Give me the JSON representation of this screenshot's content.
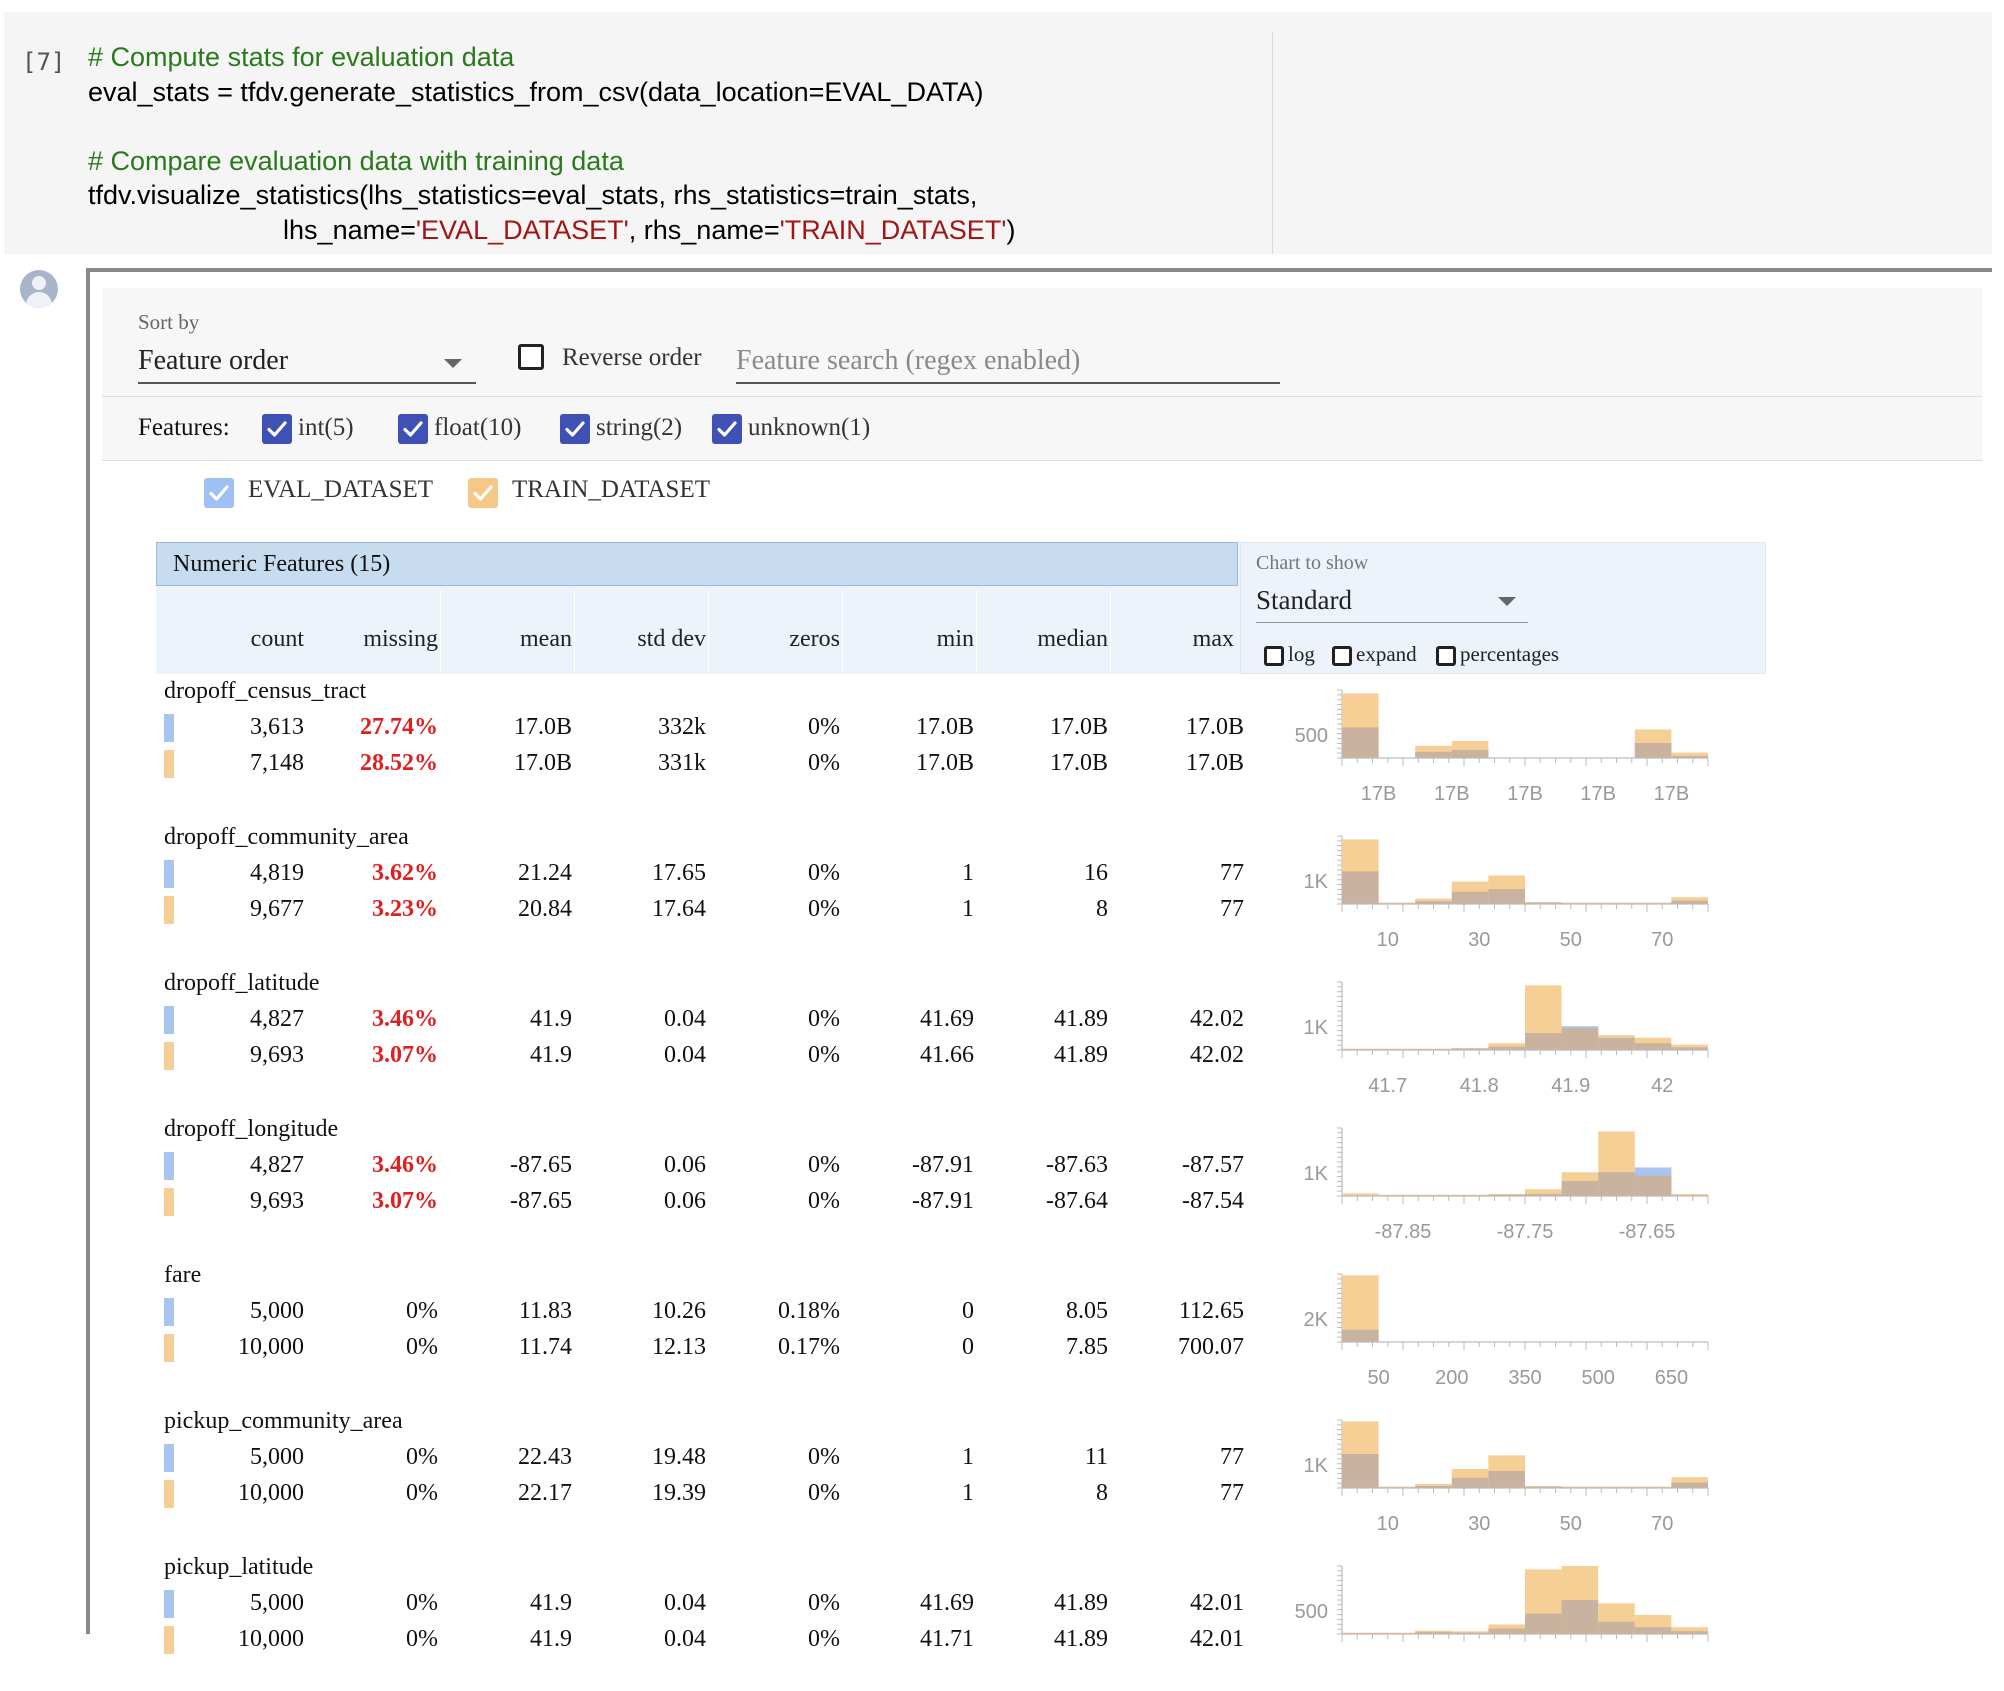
{
  "cell": {
    "execution_count": "[7]",
    "code_lines": [
      [
        {
          "t": "# Compute stats for evaluation data",
          "c": "cm"
        }
      ],
      [
        {
          "t": "eval_stats = tfdv.generate_statistics_from_csv(data_location=EVAL_DATA)",
          "c": ""
        }
      ],
      [
        {
          "t": "",
          "c": ""
        }
      ],
      [
        {
          "t": "# Compare evaluation data with training data",
          "c": "cm"
        }
      ],
      [
        {
          "t": "tfdv.visualize_statistics(lhs_statistics=eval_stats, rhs_statistics=train_stats,",
          "c": ""
        }
      ],
      [
        {
          "t": "                          lhs_name=",
          "c": ""
        },
        {
          "t": "'EVAL_DATASET'",
          "c": "st"
        },
        {
          "t": ", rhs_name=",
          "c": ""
        },
        {
          "t": "'TRAIN_DATASET'",
          "c": "st"
        },
        {
          "t": ")",
          "c": ""
        }
      ]
    ]
  },
  "controls": {
    "sort_by_label": "Sort by",
    "sort_by_value": "Feature order",
    "reverse_order_label": "Reverse order",
    "search_placeholder": "Feature search (regex enabled)",
    "features_label": "Features:",
    "feature_types": [
      {
        "label": "int(5)",
        "checked": true
      },
      {
        "label": "float(10)",
        "checked": true
      },
      {
        "label": "string(2)",
        "checked": true
      },
      {
        "label": "unknown(1)",
        "checked": true
      }
    ],
    "datasets": [
      {
        "label": "EVAL_DATASET",
        "color": "#9ec0f2"
      },
      {
        "label": "TRAIN_DATASET",
        "color": "#f5c888"
      }
    ]
  },
  "table": {
    "title": "Numeric Features (15)",
    "columns": [
      "count",
      "missing",
      "mean",
      "std dev",
      "zeros",
      "min",
      "median",
      "max"
    ],
    "chart_to_show_label": "Chart to show",
    "chart_to_show_value": "Standard",
    "chart_options": [
      "log",
      "expand",
      "percentages"
    ],
    "colors": {
      "eval": "#a9c4ef",
      "train": "#f6cf97",
      "overlap": "#c9b29e",
      "missing_red": "#e02020"
    }
  },
  "features": [
    {
      "name": "dropoff_census_tract",
      "rows": [
        [
          "3,613",
          "27.74%",
          "17.0B",
          "332k",
          "0%",
          "17.0B",
          "17.0B",
          "17.0B"
        ],
        [
          "7,148",
          "28.52%",
          "17.0B",
          "331k",
          "0%",
          "17.0B",
          "17.0B",
          "17.0B"
        ]
      ],
      "missing_red": true,
      "chart_data": {
        "type": "bar",
        "y_tick_label": "500",
        "x_tick_labels": [
          "17B",
          "17B",
          "17B",
          "17B",
          "17B"
        ],
        "eval": [
          0.45,
          0,
          0.09,
          0.12,
          0,
          0,
          0,
          0,
          0.22,
          0.03
        ],
        "train": [
          0.95,
          0,
          0.18,
          0.25,
          0,
          0,
          0,
          0,
          0.42,
          0.08
        ]
      }
    },
    {
      "name": "dropoff_community_area",
      "rows": [
        [
          "4,819",
          "3.62%",
          "21.24",
          "17.65",
          "0%",
          "1",
          "16",
          "77"
        ],
        [
          "9,677",
          "3.23%",
          "20.84",
          "17.64",
          "0%",
          "1",
          "8",
          "77"
        ]
      ],
      "missing_red": true,
      "chart_data": {
        "type": "bar",
        "y_tick_label": "1K",
        "x_tick_labels": [
          "10",
          "30",
          "50",
          "70"
        ],
        "eval": [
          0.48,
          0.01,
          0.04,
          0.18,
          0.22,
          0.02,
          0.01,
          0.01,
          0.01,
          0.05
        ],
        "train": [
          0.95,
          0.02,
          0.08,
          0.33,
          0.42,
          0.03,
          0.02,
          0.02,
          0.02,
          0.1
        ]
      }
    },
    {
      "name": "dropoff_latitude",
      "rows": [
        [
          "4,827",
          "3.46%",
          "41.9",
          "0.04",
          "0%",
          "41.69",
          "41.89",
          "42.02"
        ],
        [
          "9,693",
          "3.07%",
          "41.9",
          "0.04",
          "0%",
          "41.66",
          "41.89",
          "42.02"
        ]
      ],
      "missing_red": true,
      "chart_data": {
        "type": "bar",
        "y_tick_label": "1K",
        "x_tick_labels": [
          "41.7",
          "41.8",
          "41.9",
          "42"
        ],
        "eval": [
          0.01,
          0.01,
          0.01,
          0.02,
          0.05,
          0.25,
          0.35,
          0.18,
          0.1,
          0.04
        ],
        "train": [
          0.02,
          0.02,
          0.02,
          0.03,
          0.1,
          0.95,
          0.32,
          0.22,
          0.18,
          0.08
        ]
      }
    },
    {
      "name": "dropoff_longitude",
      "rows": [
        [
          "4,827",
          "3.46%",
          "-87.65",
          "0.06",
          "0%",
          "-87.91",
          "-87.63",
          "-87.57"
        ],
        [
          "9,693",
          "3.07%",
          "-87.65",
          "0.06",
          "0%",
          "-87.91",
          "-87.64",
          "-87.54"
        ]
      ],
      "missing_red": true,
      "chart_data": {
        "type": "bar",
        "y_tick_label": "1K",
        "x_tick_labels": [
          "-87.85",
          "-87.75",
          "-87.65"
        ],
        "eval": [
          0.01,
          0.01,
          0.01,
          0.01,
          0.02,
          0.03,
          0.22,
          0.35,
          0.42,
          0.01
        ],
        "train": [
          0.04,
          0.02,
          0.02,
          0.02,
          0.03,
          0.1,
          0.35,
          0.95,
          0.3,
          0.03
        ]
      }
    },
    {
      "name": "fare",
      "rows": [
        [
          "5,000",
          "0%",
          "11.83",
          "10.26",
          "0.18%",
          "0",
          "8.05",
          "112.65"
        ],
        [
          "10,000",
          "0%",
          "11.74",
          "12.13",
          "0.17%",
          "0",
          "7.85",
          "700.07"
        ]
      ],
      "missing_red": false,
      "chart_data": {
        "type": "bar",
        "y_tick_label": "2K",
        "x_tick_labels": [
          "50",
          "200",
          "350",
          "500",
          "650"
        ],
        "eval": [
          0.18,
          0,
          0,
          0,
          0,
          0,
          0,
          0,
          0,
          0
        ],
        "train": [
          0.98,
          0,
          0,
          0,
          0,
          0,
          0,
          0,
          0,
          0
        ]
      }
    },
    {
      "name": "pickup_community_area",
      "rows": [
        [
          "5,000",
          "0%",
          "22.43",
          "19.48",
          "0%",
          "1",
          "11",
          "77"
        ],
        [
          "10,000",
          "0%",
          "22.17",
          "19.39",
          "0%",
          "1",
          "8",
          "77"
        ]
      ],
      "missing_red": false,
      "chart_data": {
        "type": "bar",
        "y_tick_label": "1K",
        "x_tick_labels": [
          "10",
          "30",
          "50",
          "70"
        ],
        "eval": [
          0.5,
          0.01,
          0.03,
          0.15,
          0.25,
          0.02,
          0.01,
          0.01,
          0.01,
          0.08
        ],
        "train": [
          0.98,
          0.02,
          0.06,
          0.28,
          0.48,
          0.03,
          0.02,
          0.02,
          0.02,
          0.16
        ]
      }
    },
    {
      "name": "pickup_latitude",
      "rows": [
        [
          "5,000",
          "0%",
          "41.9",
          "0.04",
          "0%",
          "41.69",
          "41.89",
          "42.01"
        ],
        [
          "10,000",
          "0%",
          "41.9",
          "0.04",
          "0%",
          "41.71",
          "41.89",
          "42.01"
        ]
      ],
      "missing_red": false,
      "chart_data": {
        "type": "bar",
        "y_tick_label": "500",
        "x_tick_labels": [],
        "eval": [
          0.01,
          0.01,
          0.03,
          0.02,
          0.08,
          0.3,
          0.5,
          0.18,
          0.1,
          0.04
        ],
        "train": [
          0.02,
          0.02,
          0.05,
          0.04,
          0.14,
          0.95,
          1.0,
          0.45,
          0.28,
          0.1
        ]
      }
    }
  ]
}
